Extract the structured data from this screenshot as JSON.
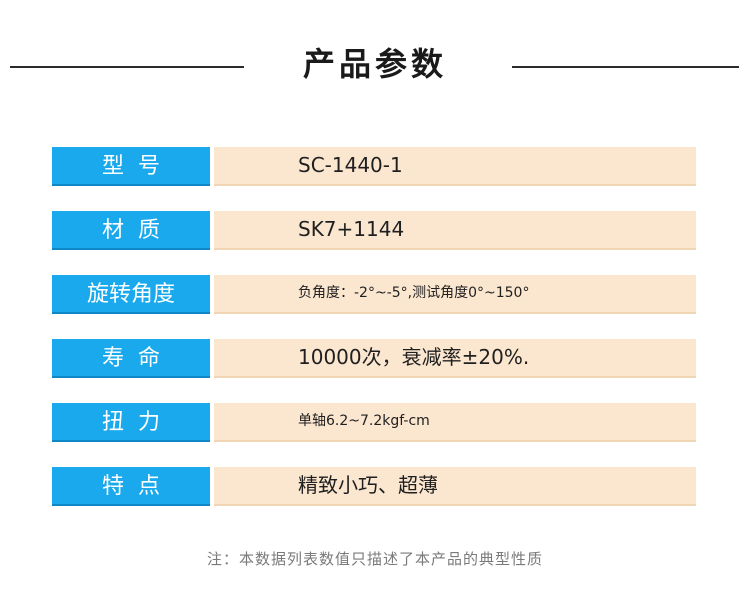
{
  "header": {
    "title": "产品参数"
  },
  "specs": [
    {
      "label": "型  号",
      "value": "SC-1440-1"
    },
    {
      "label": "材  质",
      "value": "SK7+1144"
    },
    {
      "label": "旋转角度",
      "value": "负角度：-2°~-5°,测试角度0°~150°"
    },
    {
      "label": "寿  命",
      "value": "10000次，衰减率±20%."
    },
    {
      "label": "扭  力",
      "value": "单轴6.2~7.2kgf-cm"
    },
    {
      "label": "特  点",
      "value": "精致小巧、超薄"
    }
  ],
  "footnote": "注：本数据列表数值只描述了本产品的典型性质",
  "colors": {
    "label_bg": "#1aa9ec",
    "value_bg": "#fbe6cf"
  }
}
